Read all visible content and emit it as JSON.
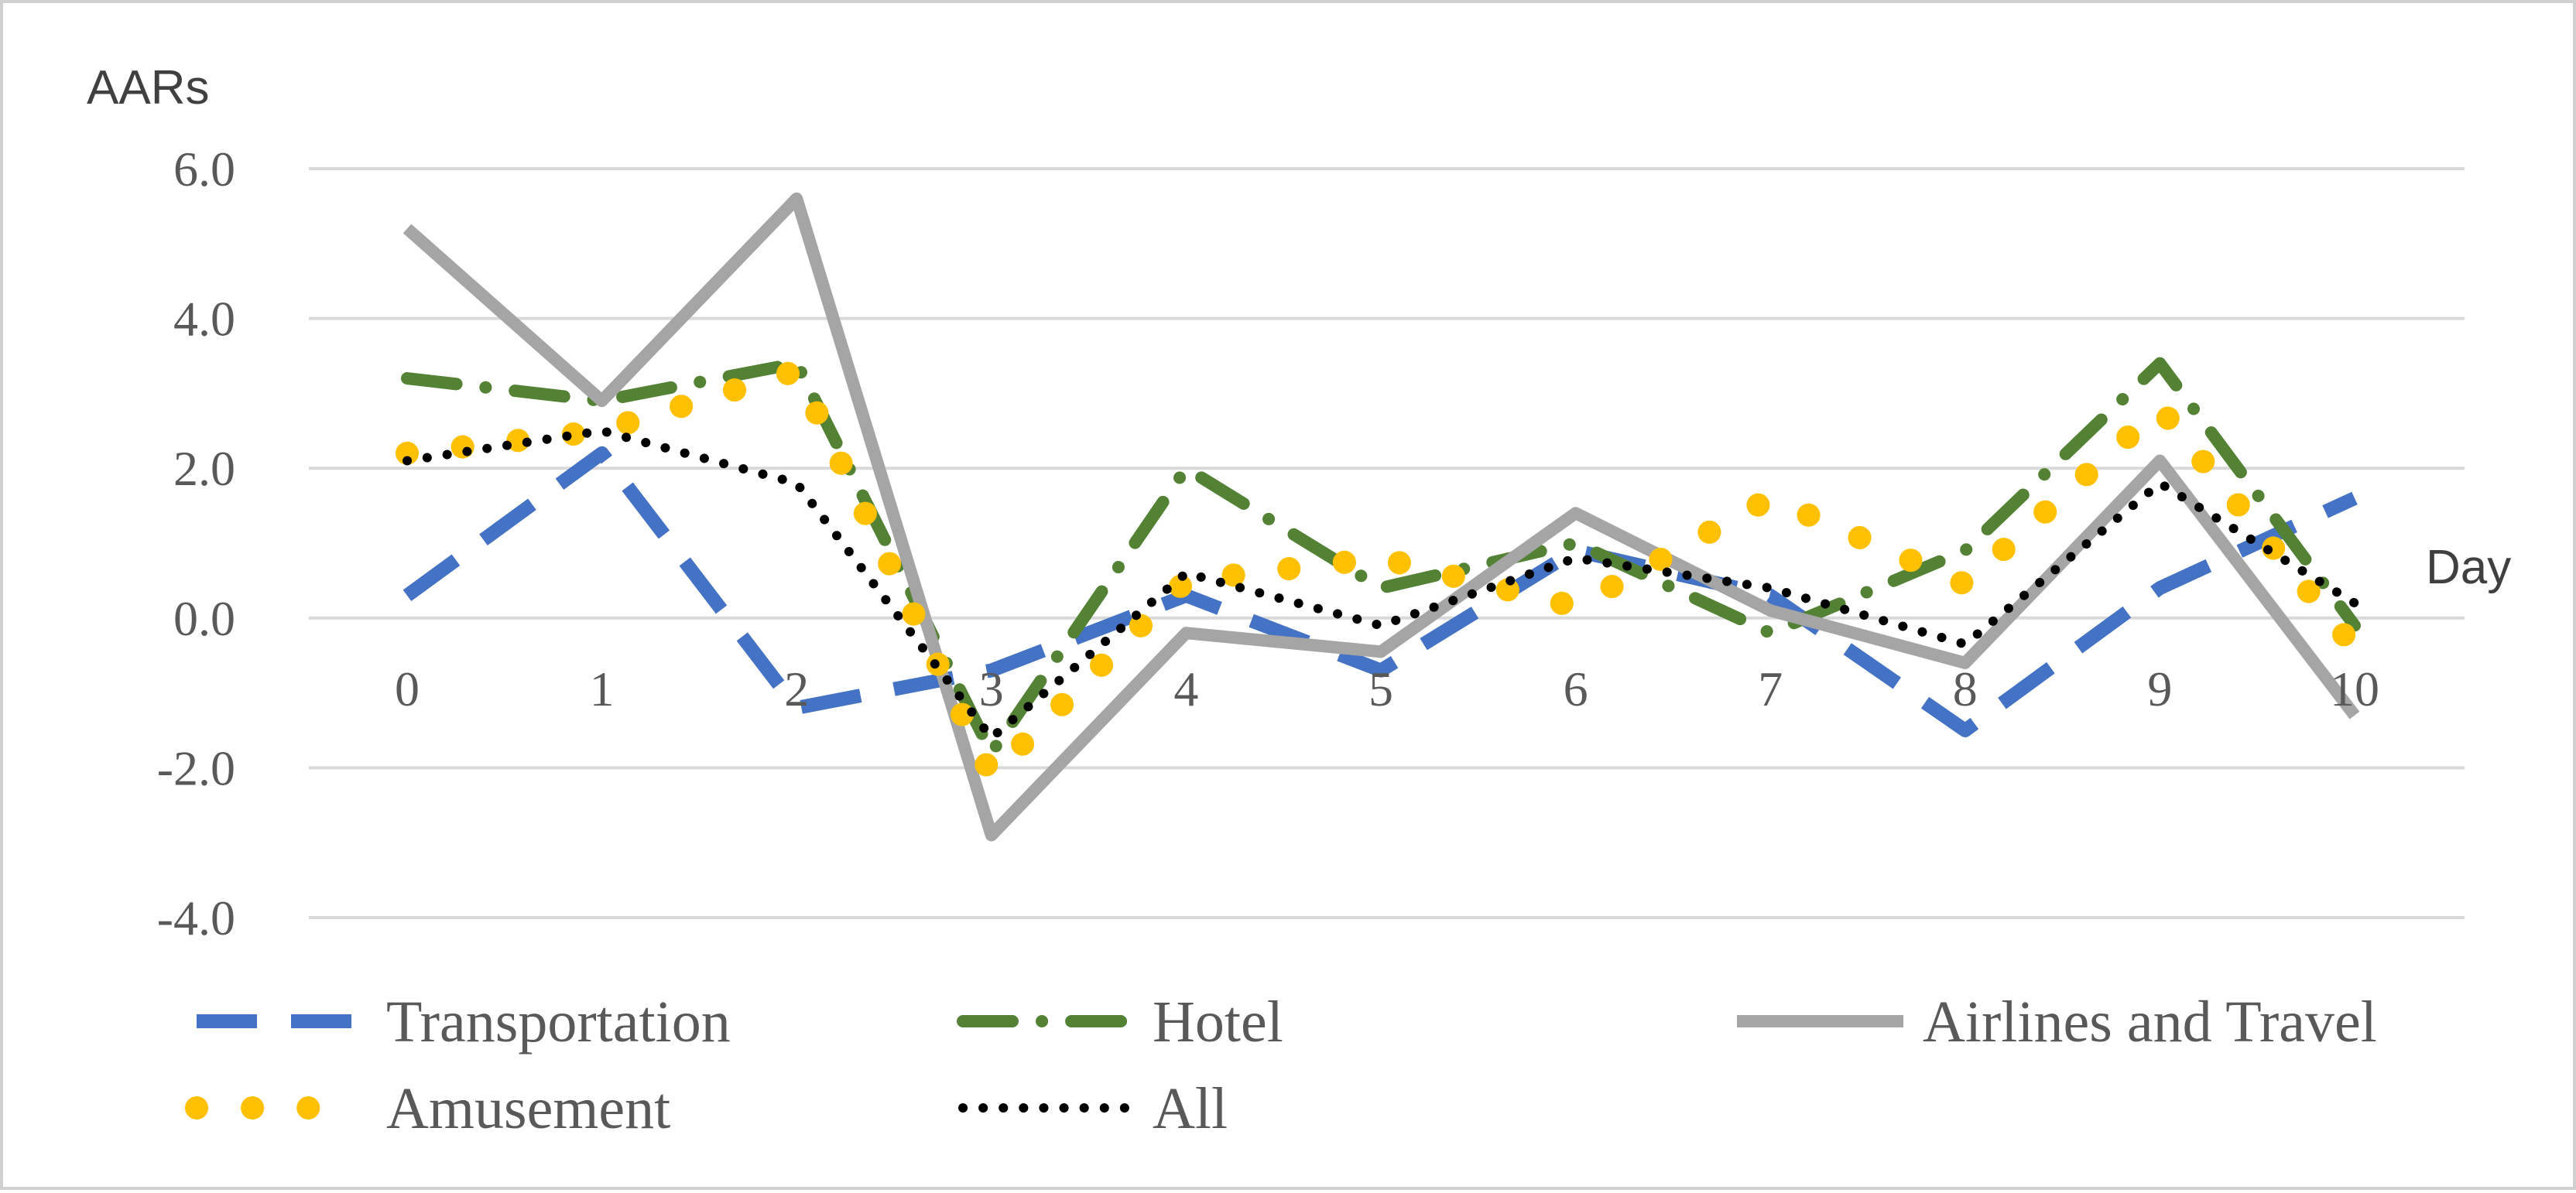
{
  "chart_data": {
    "type": "line",
    "ylabel": "AARs",
    "xlabel": "Day",
    "x": [
      0,
      1,
      2,
      3,
      4,
      5,
      6,
      7,
      8,
      9,
      10
    ],
    "x_tick_labels": [
      "0",
      "1",
      "2",
      "3",
      "4",
      "5",
      "6",
      "7",
      "8",
      "9",
      "10"
    ],
    "ylim": [
      -4,
      6
    ],
    "y_ticks": [
      6,
      4,
      2,
      0,
      -2,
      -4
    ],
    "y_tick_labels": [
      "6.0",
      "4.0",
      "2.0",
      "0.0",
      "-2.0",
      "-4.0"
    ],
    "grid": true,
    "legend_position": "bottom",
    "series": [
      {
        "name": "Transportation",
        "color": "#4472C4",
        "style": "dashed",
        "values": [
          0.3,
          2.2,
          -1.2,
          -0.7,
          0.3,
          -0.7,
          0.9,
          0.3,
          -1.5,
          0.4,
          1.6
        ]
      },
      {
        "name": "Hotel",
        "color": "#548235",
        "style": "dash-dot",
        "values": [
          3.2,
          2.9,
          3.4,
          -1.8,
          2.0,
          0.4,
          1.0,
          -0.2,
          0.9,
          3.4,
          -0.1
        ]
      },
      {
        "name": "Airlines and Travel",
        "color": "#A5A5A5",
        "style": "solid",
        "values": [
          5.2,
          2.9,
          5.6,
          -2.9,
          -0.2,
          -0.45,
          1.4,
          0.1,
          -0.6,
          2.1,
          -1.3
        ]
      },
      {
        "name": "Amusement",
        "color": "#FFC000",
        "style": "round-dots",
        "values": [
          2.2,
          2.5,
          3.3,
          -2.1,
          0.5,
          0.8,
          0.15,
          1.6,
          0.45,
          2.8,
          -0.4
        ]
      },
      {
        "name": "All",
        "color": "#000000",
        "style": "dotted",
        "values": [
          2.1,
          2.5,
          1.8,
          -1.6,
          0.6,
          -0.1,
          0.8,
          0.4,
          -0.35,
          1.8,
          0.2
        ]
      }
    ]
  }
}
